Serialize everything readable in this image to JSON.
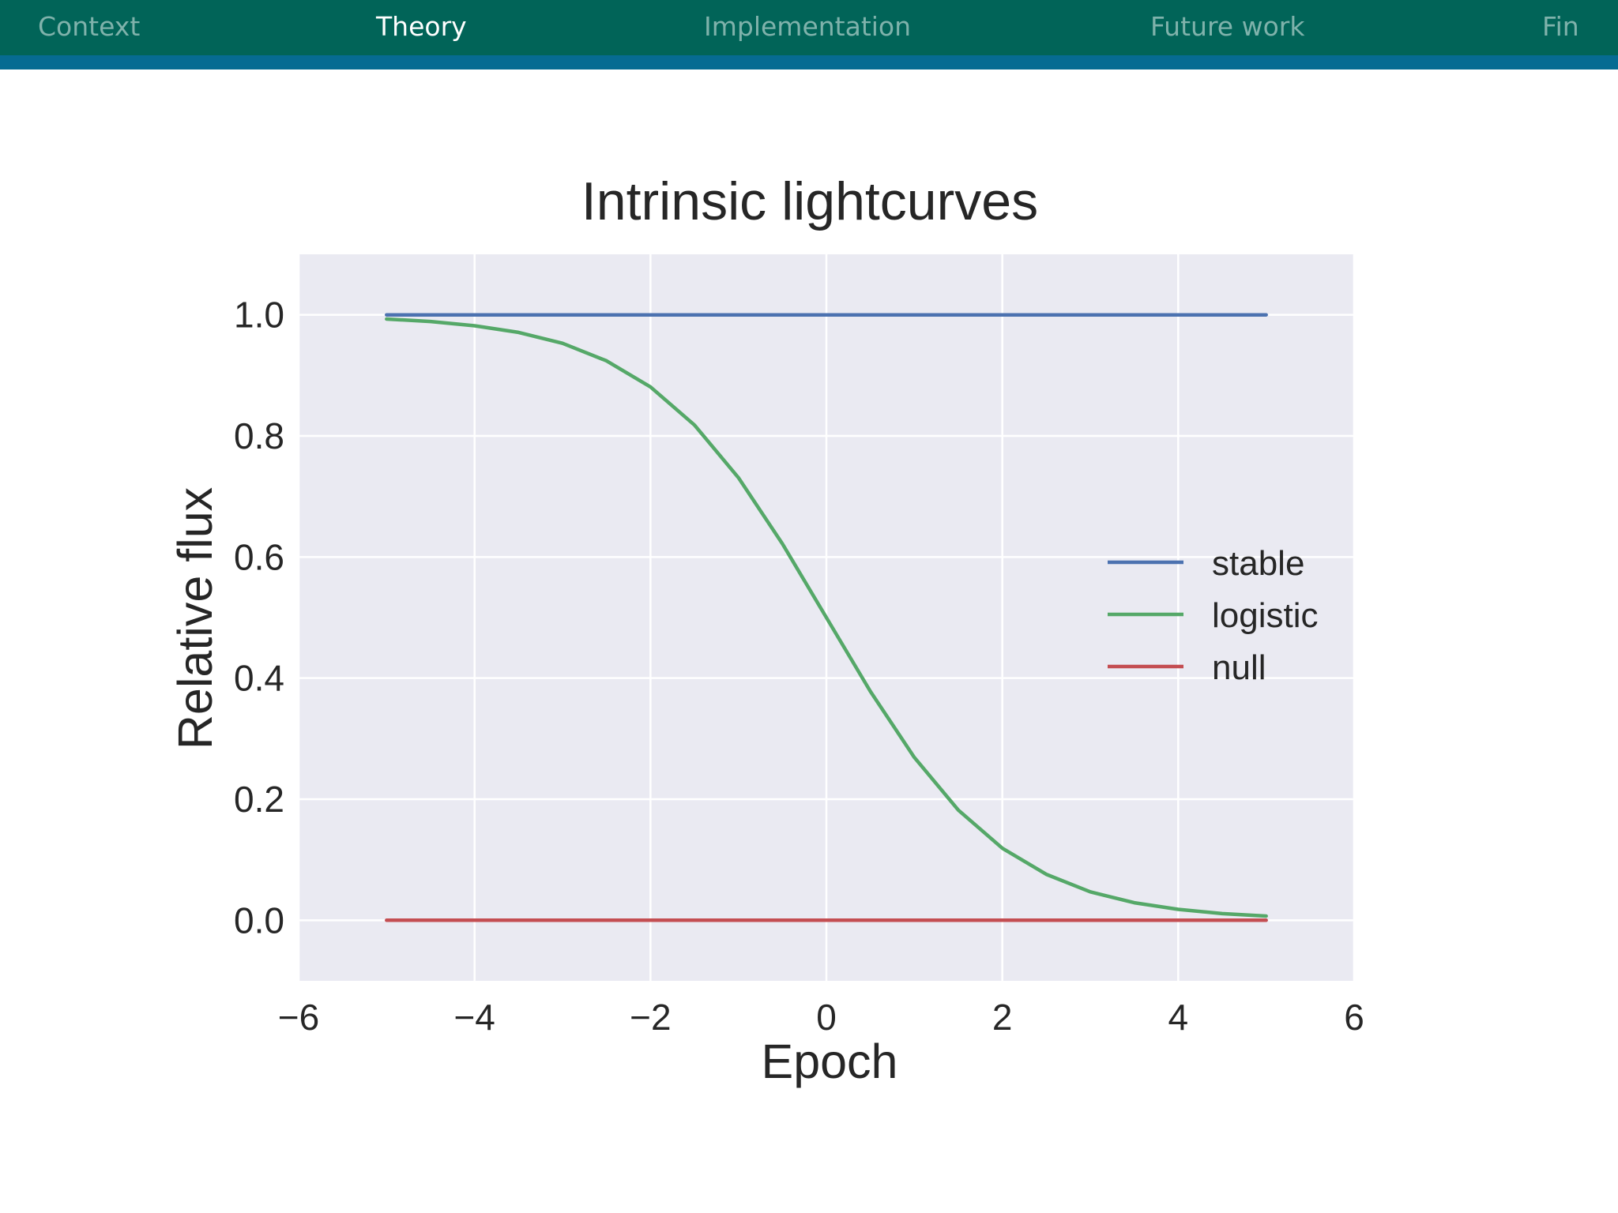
{
  "nav": {
    "items": [
      {
        "label": "Context",
        "active": false
      },
      {
        "label": "Theory",
        "active": true
      },
      {
        "label": "Implementation",
        "active": false
      },
      {
        "label": "Future work",
        "active": false
      },
      {
        "label": "Fin",
        "active": false
      }
    ]
  },
  "colors": {
    "nav_bg": "#016458",
    "nav_stripe": "#066b92",
    "nav_inactive": "#7fb2ab",
    "nav_active": "#ffffff",
    "plot_bg": "#eaeaf2",
    "grid": "#ffffff",
    "text": "#262626"
  },
  "chart_data": {
    "type": "line",
    "title": "Intrinsic lightcurves",
    "xlabel": "Epoch",
    "ylabel": "Relative flux",
    "xlim": [
      -6,
      6
    ],
    "ylim": [
      -0.1,
      1.1
    ],
    "xticks": [
      -6,
      -4,
      -2,
      0,
      2,
      4,
      6
    ],
    "xtick_labels": [
      "−6",
      "−4",
      "−2",
      "0",
      "2",
      "4",
      "6"
    ],
    "yticks": [
      0.0,
      0.2,
      0.4,
      0.6,
      0.8,
      1.0
    ],
    "ytick_labels": [
      "0.0",
      "0.2",
      "0.4",
      "0.6",
      "0.8",
      "1.0"
    ],
    "grid": true,
    "legend_position": "center-right",
    "series": [
      {
        "name": "stable",
        "color": "#4c72b0",
        "x": [
          -5,
          5
        ],
        "y": [
          1.0,
          1.0
        ]
      },
      {
        "name": "logistic",
        "color": "#55a868",
        "x": [
          -5,
          -4.5,
          -4,
          -3.5,
          -3,
          -2.5,
          -2,
          -1.5,
          -1,
          -0.5,
          0,
          0.5,
          1,
          1.5,
          2,
          2.5,
          3,
          3.5,
          4,
          4.5,
          5
        ],
        "y": [
          0.993,
          0.989,
          0.982,
          0.971,
          0.953,
          0.924,
          0.881,
          0.818,
          0.731,
          0.622,
          0.5,
          0.378,
          0.269,
          0.182,
          0.119,
          0.076,
          0.047,
          0.029,
          0.018,
          0.011,
          0.007
        ]
      },
      {
        "name": "null",
        "color": "#c44e52",
        "x": [
          -5,
          5
        ],
        "y": [
          0.0,
          0.0
        ]
      }
    ]
  }
}
